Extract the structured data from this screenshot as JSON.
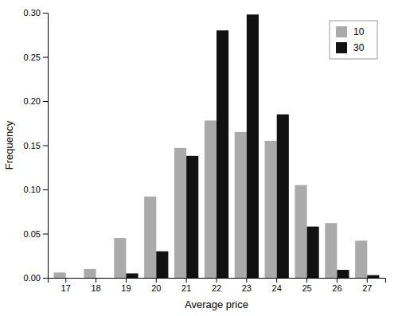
{
  "chart_data": {
    "type": "bar",
    "categories": [
      17,
      18,
      19,
      20,
      21,
      22,
      23,
      24,
      25,
      26,
      27
    ],
    "series": [
      {
        "name": "10",
        "color": "#aaaaaa",
        "values": [
          0.006,
          0.01,
          0.045,
          0.092,
          0.147,
          0.178,
          0.165,
          0.155,
          0.105,
          0.062,
          0.042
        ]
      },
      {
        "name": "30",
        "color": "#111111",
        "values": [
          0.0,
          0.0,
          0.005,
          0.03,
          0.138,
          0.28,
          0.298,
          0.185,
          0.058,
          0.009,
          0.003
        ]
      }
    ],
    "xlabel": "Average price",
    "ylabel": "Frequency",
    "ylim": [
      0,
      0.3
    ],
    "yticks": [
      {
        "value": 0,
        "label": "0.00"
      },
      {
        "value": 0.05,
        "label": "0.05"
      },
      {
        "value": 0.1,
        "label": "0.10"
      },
      {
        "value": 0.15,
        "label": "0.15"
      },
      {
        "value": 0.2,
        "label": "0.20"
      },
      {
        "value": 0.25,
        "label": "0.25"
      },
      {
        "value": 0.3,
        "label": "0.30"
      }
    ],
    "grid": false,
    "legend": "upper right"
  }
}
